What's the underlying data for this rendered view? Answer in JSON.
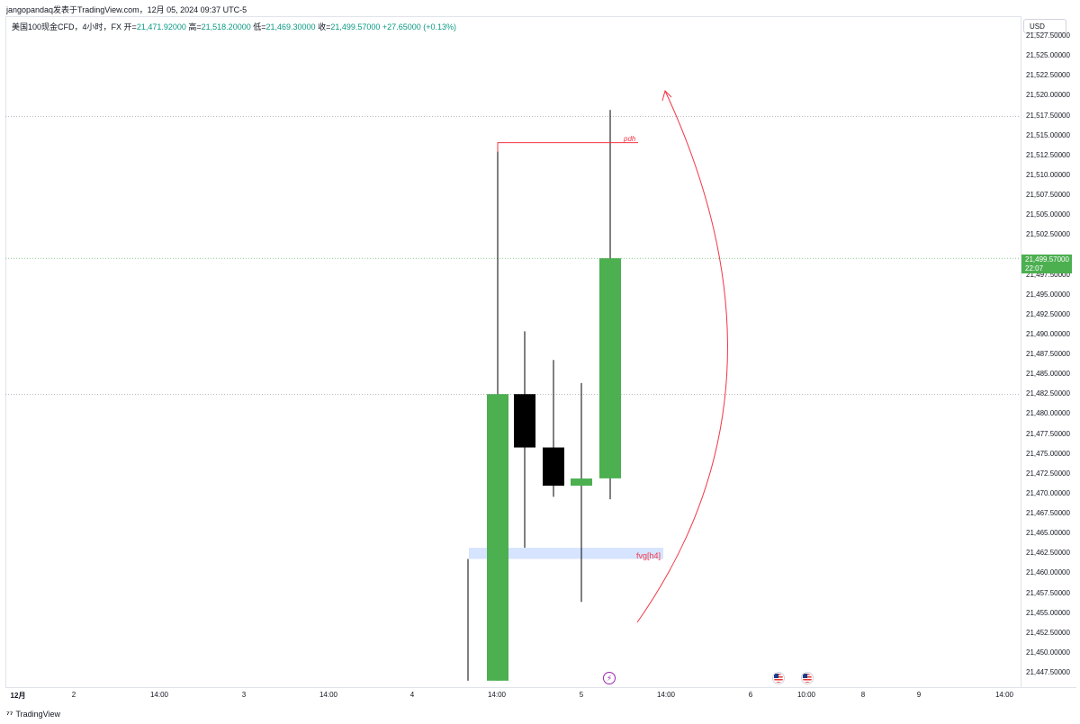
{
  "header": {
    "publisher_line": "jangopandaq发表于TradingView.com，12月 05, 2024 09:37 UTC-5",
    "symbol_desc": "美国100现金CFD，4小时，FX",
    "open_label": "开=",
    "open_value": "21,471.92000",
    "high_label": "高=",
    "high_value": "21,518.20000",
    "low_label": "低=",
    "low_value": "21,469.30000",
    "close_label": "收=",
    "close_value": "21,499.57000",
    "change_value": "+27.65000 (+0.13%)"
  },
  "price_axis": {
    "currency": "USD",
    "last_price": "21,499.57000",
    "countdown": "22:07"
  },
  "footer": {
    "logo_mark": "⁷⁷",
    "logo_text": "TradingView"
  },
  "annotations": {
    "pdh_label": "pdh",
    "fvg_label": "fvg[h4]"
  },
  "events": {
    "bolt_icon": "lightning-icon",
    "flag_icon": "us-flag-icon"
  },
  "colors": {
    "up": "#4caf50",
    "down": "#000000",
    "annotation": "#f23645",
    "fvg_zone": "#d6e4ff"
  },
  "chart_data": {
    "type": "candlestick",
    "ylim": [
      21446.5,
      21528.5
    ],
    "y_ticks": [
      21447.5,
      21450.0,
      21452.5,
      21455.0,
      21457.5,
      21460.0,
      21462.5,
      21465.0,
      21467.5,
      21470.0,
      21472.5,
      21475.0,
      21477.5,
      21480.0,
      21482.5,
      21485.0,
      21487.5,
      21490.0,
      21492.5,
      21495.0,
      21497.5,
      21500.0,
      21502.5,
      21505.0,
      21507.5,
      21510.0,
      21512.5,
      21515.0,
      21517.5,
      21520.0,
      21522.5,
      21525.0,
      21527.5
    ],
    "y_tick_labels": [
      "21,447.50000",
      "21,450.00000",
      "21,452.50000",
      "21,455.00000",
      "21,457.50000",
      "21,460.00000",
      "21,462.50000",
      "21,465.00000",
      "21,467.50000",
      "21,470.00000",
      "21,472.50000",
      "21,475.00000",
      "21,477.50000",
      "21,480.00000",
      "21,482.50000",
      "21,485.00000",
      "21,487.50000",
      "21,490.00000",
      "21,492.50000",
      "21,495.00000",
      "21,497.50000",
      "21,500.00000",
      "21,502.50000",
      "21,505.00000",
      "21,507.50000",
      "21,510.00000",
      "21,512.50000",
      "21,515.00000",
      "21,517.50000",
      "21,520.00000",
      "21,522.50000",
      "21,525.00000",
      "21,527.50000"
    ],
    "x_ticks": [
      {
        "label": "12月",
        "bold": true
      },
      {
        "label": "2",
        "bold": false
      },
      {
        "label": "14:00",
        "bold": false
      },
      {
        "label": "3",
        "bold": false
      },
      {
        "label": "14:00",
        "bold": false
      },
      {
        "label": "4",
        "bold": false
      },
      {
        "label": "14:00",
        "bold": false
      },
      {
        "label": "5",
        "bold": false
      },
      {
        "label": "14:00",
        "bold": false
      },
      {
        "label": "6",
        "bold": false
      },
      {
        "label": "10:00",
        "bold": false
      },
      {
        "label": "8",
        "bold": false
      },
      {
        "label": "9",
        "bold": false
      },
      {
        "label": "14:00",
        "bold": false
      }
    ],
    "candles": [
      {
        "open": null,
        "high": 21461.8,
        "low": 21446.5,
        "close": null,
        "note": "wick only, partially visible"
      },
      {
        "open": 21446.5,
        "high": 21513.9,
        "low": 21446.5,
        "close": 21482.5
      },
      {
        "open": 21482.5,
        "high": 21490.4,
        "low": 21463.2,
        "close": 21475.8
      },
      {
        "open": 21475.8,
        "high": 21486.8,
        "low": 21469.6,
        "close": 21471.0
      },
      {
        "open": 21471.0,
        "high": 21483.9,
        "low": 21456.4,
        "close": 21471.9
      },
      {
        "open": 21471.92,
        "high": 21518.2,
        "low": 21469.3,
        "close": 21499.57
      }
    ],
    "horizontal_lines": [
      21517.4,
      21499.57,
      21482.5
    ],
    "pdh_level": 21514.1,
    "fvg_zone": [
      21461.8,
      21463.2
    ]
  }
}
